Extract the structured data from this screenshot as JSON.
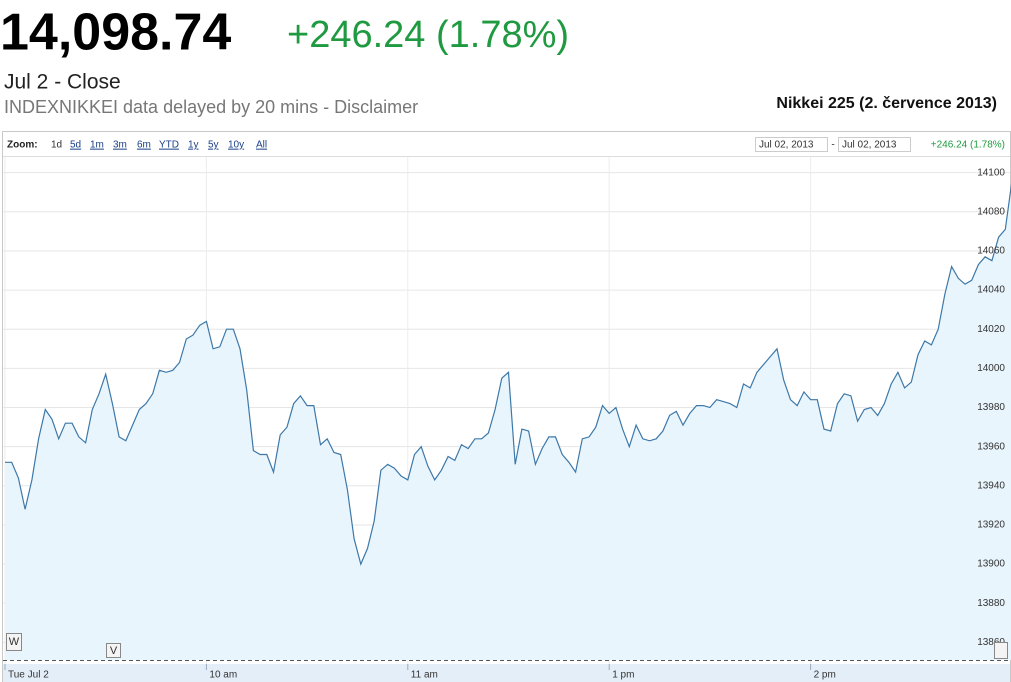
{
  "header": {
    "price": "14,098.74",
    "change": "+246.24 (1.78%)",
    "close": "Jul 2 - Close",
    "delay": "INDEXNIKKEI data delayed by 20 mins - Disclaimer"
  },
  "toolbar": {
    "zoom_label": "Zoom:",
    "zoom_links": [
      "1d",
      "5d",
      "1m",
      "3m",
      "6m",
      "YTD",
      "1y",
      "5y",
      "10y",
      "All"
    ],
    "range_from": "Jul 02, 2013",
    "range_sep": "-",
    "range_to": "Jul 02, 2013",
    "range_change": "+246.24 (1.78%)"
  },
  "annotations": [
    "W",
    "V"
  ],
  "chart_data": {
    "type": "line",
    "title": "Nikkei 225 (2. července 2013)",
    "color": "#3d78a8",
    "area_color": "#e9f5fc",
    "grid": true,
    "x": [
      0,
      2,
      4,
      6,
      8,
      10,
      12,
      14,
      16,
      18,
      20,
      22,
      24,
      26,
      28,
      30,
      32,
      34,
      36,
      38,
      40,
      42,
      44,
      46,
      48,
      50,
      52,
      54,
      56,
      58,
      60,
      62,
      64,
      66,
      68,
      70,
      72,
      74,
      76,
      78,
      80,
      82,
      84,
      86,
      88,
      90,
      92,
      94,
      96,
      98,
      100,
      102,
      104,
      106,
      108,
      110,
      112,
      114,
      116,
      118,
      120,
      122,
      124,
      126,
      128,
      130,
      132,
      134,
      136,
      138,
      140,
      142,
      144,
      146,
      148,
      150,
      152,
      154,
      156,
      158,
      160,
      162,
      164,
      166,
      168,
      170,
      172,
      174,
      176,
      178,
      180,
      182,
      184,
      186,
      188,
      190,
      192,
      194,
      196,
      198,
      200,
      202,
      204,
      206,
      208,
      210,
      212,
      214,
      216,
      218,
      220,
      222,
      224,
      226,
      228,
      230,
      232,
      234,
      236,
      238,
      240,
      242,
      244,
      246,
      248,
      250,
      252,
      254,
      256,
      258,
      260,
      262,
      264,
      266,
      268,
      270,
      272,
      274,
      276,
      278,
      280,
      282,
      284,
      286,
      288,
      290,
      292,
      294,
      296,
      298,
      300
    ],
    "values": [
      13952,
      13952,
      13944,
      13928,
      13943,
      13964,
      13979,
      13974,
      13964,
      13972,
      13972,
      13965,
      13962,
      13979,
      13987,
      13997,
      13982,
      13965,
      13963,
      13971,
      13979,
      13982,
      13987,
      13999,
      13998,
      13999,
      14003,
      14015,
      14017,
      14022,
      14024,
      14010,
      14011,
      14020,
      14020,
      14010,
      13989,
      13958,
      13956,
      13956,
      13947,
      13966,
      13970,
      13982,
      13986,
      13981,
      13981,
      13961,
      13964,
      13957,
      13956,
      13938,
      13913,
      13900,
      13908,
      13922,
      13948,
      13951,
      13949,
      13945,
      13943,
      13956,
      13960,
      13950,
      13943,
      13948,
      13955,
      13953,
      13961,
      13959,
      13964,
      13964,
      13967,
      13979,
      13995,
      13998,
      13951,
      13969,
      13968,
      13951,
      13959,
      13965,
      13965,
      13956,
      13952,
      13947,
      13964,
      13965,
      13970,
      13981,
      13977,
      13980,
      13969,
      13960,
      13971,
      13964,
      13963,
      13964,
      13968,
      13976,
      13978,
      13971,
      13977,
      13981,
      13981,
      13980,
      13984,
      13983,
      13982,
      13980,
      13992,
      13990,
      13998,
      14002,
      14006,
      14010,
      13994,
      13984,
      13981,
      13988,
      13984,
      13984,
      13969,
      13968,
      13982,
      13987,
      13986,
      13973,
      13979,
      13980,
      13976,
      13982,
      13992,
      13998,
      13990,
      13993,
      14007,
      14014,
      14012,
      14020,
      14038,
      14052,
      14046,
      14043,
      14045,
      14053,
      14057,
      14055,
      14067,
      14071,
      14096
    ],
    "xlim": [
      0,
      300
    ],
    "xticks": [
      {
        "value": 0,
        "label": "Tue Jul 2"
      },
      {
        "value": 60,
        "label": "10 am"
      },
      {
        "value": 120,
        "label": "11 am"
      },
      {
        "value": 180,
        "label": "1 pm"
      },
      {
        "value": 240,
        "label": "2 pm"
      }
    ],
    "ylim": [
      13851,
      14108
    ],
    "yticks": [
      13860,
      13880,
      13900,
      13920,
      13940,
      13960,
      13980,
      14000,
      14020,
      14040,
      14060,
      14080,
      14100
    ]
  }
}
